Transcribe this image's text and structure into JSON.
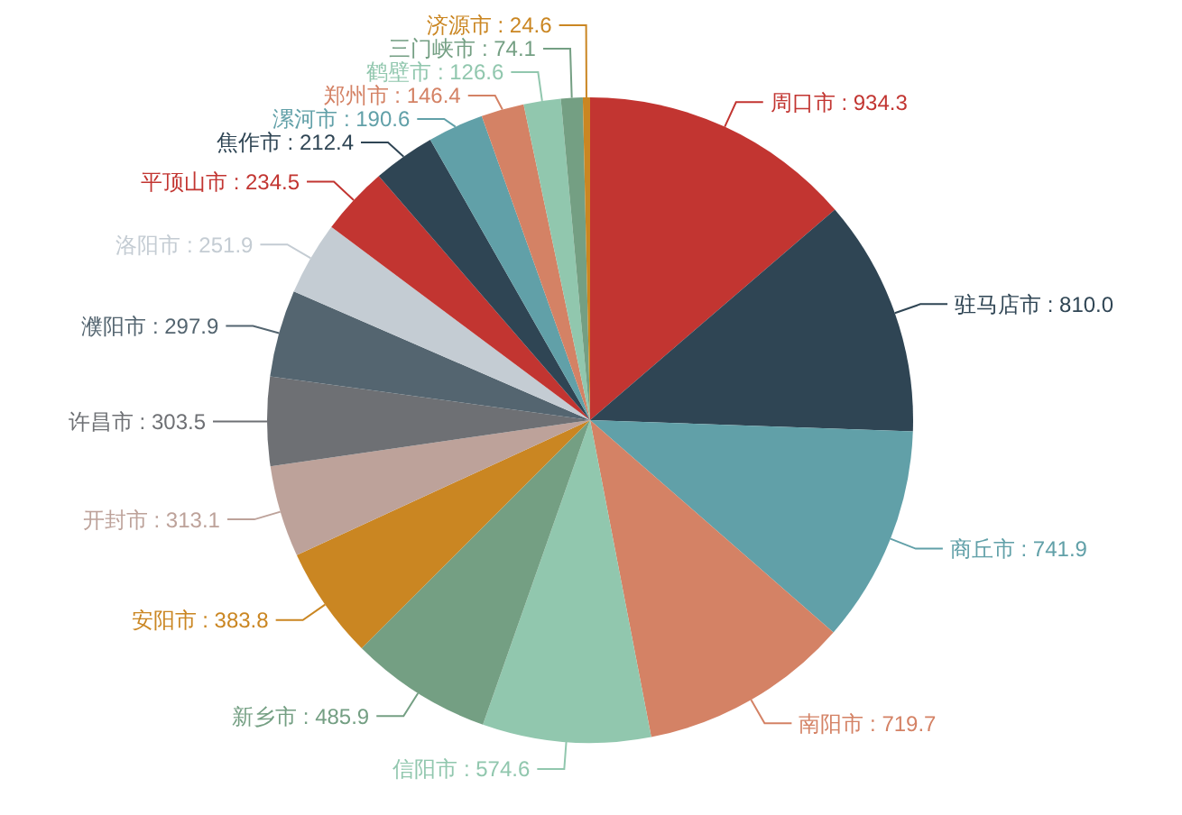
{
  "chart_data": {
    "type": "pie",
    "value_labels": [
      ": 934.3",
      ": 810.0",
      ": 741.9",
      ": 719.7",
      ": 574.6",
      ": 485.9",
      ": 383.8",
      ": 313.1",
      ": 303.5",
      ": 297.9",
      ": 251.9",
      ": 234.5",
      ": 212.4",
      ": 190.6",
      ": 146.4",
      ": 126.6",
      ": 74.1",
      ": 24.6"
    ],
    "categories": [
      "周口市",
      "驻马店市",
      "商丘市",
      "南阳市",
      "信阳市",
      "新乡市",
      "安阳市",
      "开封市",
      "许昌市",
      "濮阳市",
      "洛阳市",
      "平顶山市",
      "焦作市",
      "漯河市",
      "郑州市",
      "鹤壁市",
      "三门峡市",
      "济源市"
    ],
    "values": [
      934.3,
      810.0,
      741.9,
      719.7,
      574.6,
      485.9,
      383.8,
      313.1,
      303.5,
      297.9,
      251.9,
      234.5,
      212.4,
      190.6,
      146.4,
      126.6,
      74.1,
      24.6
    ],
    "colors": [
      "#c23531",
      "#2f4554",
      "#61a0a8",
      "#d48265",
      "#91c7ae",
      "#749f83",
      "#ca8622",
      "#bda29a",
      "#6e7074",
      "#546570",
      "#c4ccd3",
      "#c23531",
      "#2f4554",
      "#61a0a8",
      "#d48265",
      "#91c7ae",
      "#749f83",
      "#ca8622"
    ]
  }
}
